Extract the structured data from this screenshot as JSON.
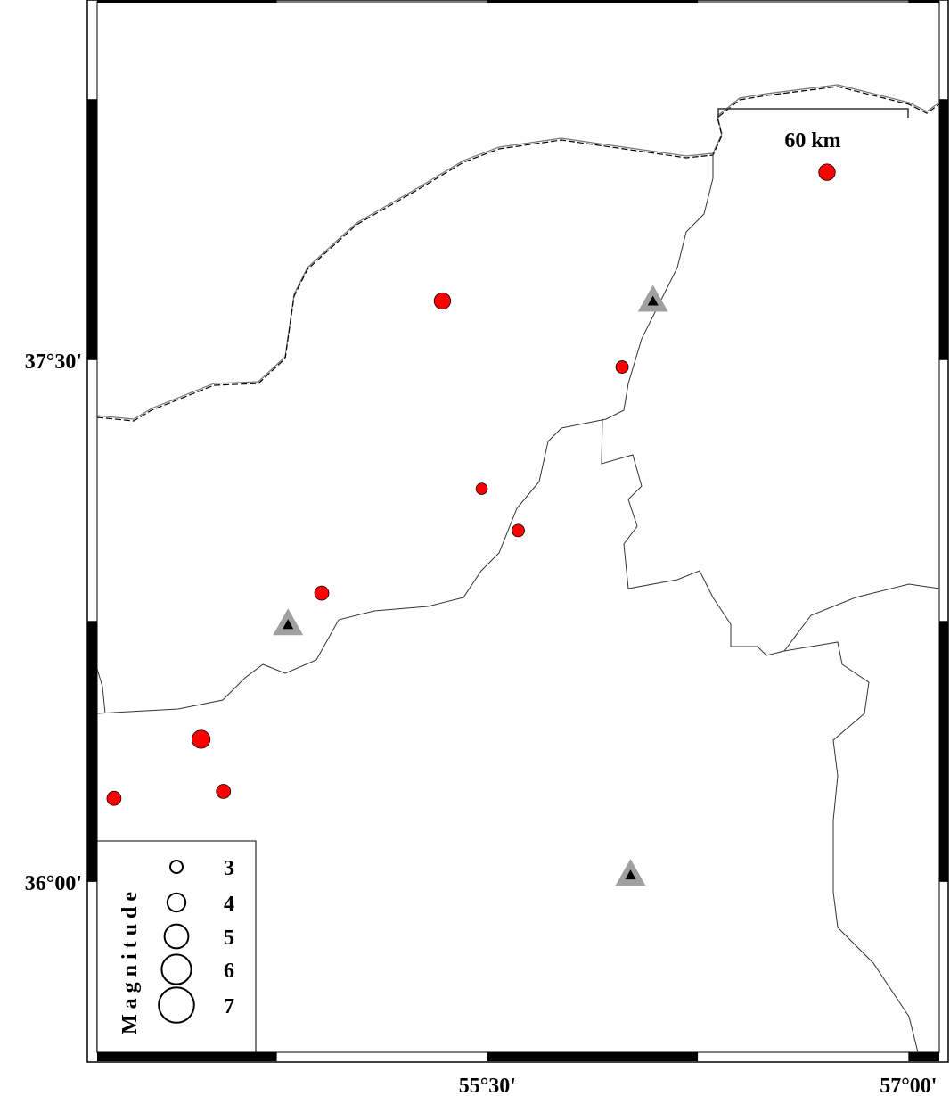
{
  "map": {
    "extent": {
      "lon_min": 54.11,
      "lon_max": 57.11,
      "lat_min": 35.51,
      "lat_max": 38.53
    },
    "x_ticks": [
      {
        "lon": 55.5,
        "label": "55°30'"
      },
      {
        "lon": 57.0,
        "label": "57°00'"
      }
    ],
    "y_ticks": [
      {
        "lat": 37.5,
        "label": "37°30'"
      },
      {
        "lat": 36.0,
        "label": "36°00'"
      }
    ],
    "scale_bar": {
      "label": "60 km"
    },
    "colors": {
      "event": "#ff0000",
      "station_outer": "#a0a0a0",
      "station_inner": "#000000",
      "border": "#555555"
    },
    "events": [
      {
        "lon": 56.71,
        "lat": 38.04,
        "mag": 3.7
      },
      {
        "lon": 55.34,
        "lat": 37.67,
        "mag": 3.7
      },
      {
        "lon": 55.98,
        "lat": 37.48,
        "mag": 3.0
      },
      {
        "lon": 55.48,
        "lat": 37.13,
        "mag": 2.8
      },
      {
        "lon": 55.61,
        "lat": 37.01,
        "mag": 3.0
      },
      {
        "lon": 54.91,
        "lat": 36.83,
        "mag": 3.3
      },
      {
        "lon": 54.48,
        "lat": 36.41,
        "mag": 4.0
      },
      {
        "lon": 54.56,
        "lat": 36.26,
        "mag": 3.3
      },
      {
        "lon": 54.17,
        "lat": 36.24,
        "mag": 3.3
      }
    ],
    "stations": [
      {
        "lon": 56.09,
        "lat": 37.67
      },
      {
        "lon": 54.79,
        "lat": 36.74
      },
      {
        "lon": 56.01,
        "lat": 36.02
      }
    ],
    "legend": {
      "title": "Magnitude",
      "magnitudes": [
        {
          "mag": 3,
          "label": "3"
        },
        {
          "mag": 4,
          "label": "4"
        },
        {
          "mag": 5,
          "label": "5"
        },
        {
          "mag": 6,
          "label": "6"
        },
        {
          "mag": 7,
          "label": "7"
        }
      ]
    }
  }
}
